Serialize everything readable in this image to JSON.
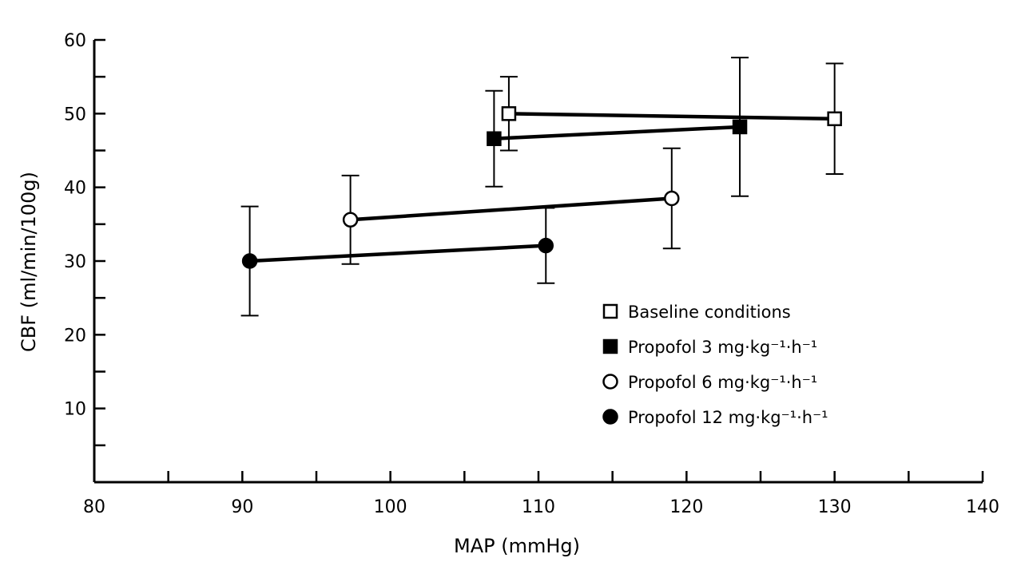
{
  "chart_data": {
    "type": "line",
    "xlabel": "MAP (mmHg)",
    "ylabel": "CBF (ml/min/100g)",
    "xlim": [
      80,
      140
    ],
    "ylim": [
      0,
      60
    ],
    "x_ticks": [
      80,
      90,
      100,
      110,
      120,
      130,
      140
    ],
    "y_ticks": [
      10,
      20,
      30,
      40,
      50,
      60
    ],
    "x_minor_step": 5,
    "y_minor_step": 5,
    "grid": false,
    "legend_placement": "lower-right",
    "series": [
      {
        "name": "Baseline conditions",
        "marker": "open-square",
        "points": [
          {
            "x": 108,
            "y": 50,
            "err": 5
          },
          {
            "x": 130,
            "y": 49.3,
            "err": 7.5
          }
        ]
      },
      {
        "name": "Propofol",
        "dose": "3",
        "unit": "mg·kg⁻¹·h⁻¹",
        "marker": "filled-square",
        "points": [
          {
            "x": 107,
            "y": 46.6,
            "err": 6.5
          },
          {
            "x": 123.6,
            "y": 48.2,
            "err": 9.4
          }
        ]
      },
      {
        "name": "Propofol",
        "dose": "6",
        "unit": "mg·kg⁻¹·h⁻¹",
        "marker": "open-circle",
        "points": [
          {
            "x": 97.3,
            "y": 35.6,
            "err": 6
          },
          {
            "x": 119,
            "y": 38.5,
            "err": 6.8
          }
        ]
      },
      {
        "name": "Propofol",
        "dose": "12",
        "unit": "mg·kg⁻¹·h⁻¹",
        "marker": "filled-circle",
        "points": [
          {
            "x": 90.5,
            "y": 30,
            "err": 7.4
          },
          {
            "x": 110.5,
            "y": 32.1,
            "err": 5.1
          }
        ]
      }
    ]
  }
}
